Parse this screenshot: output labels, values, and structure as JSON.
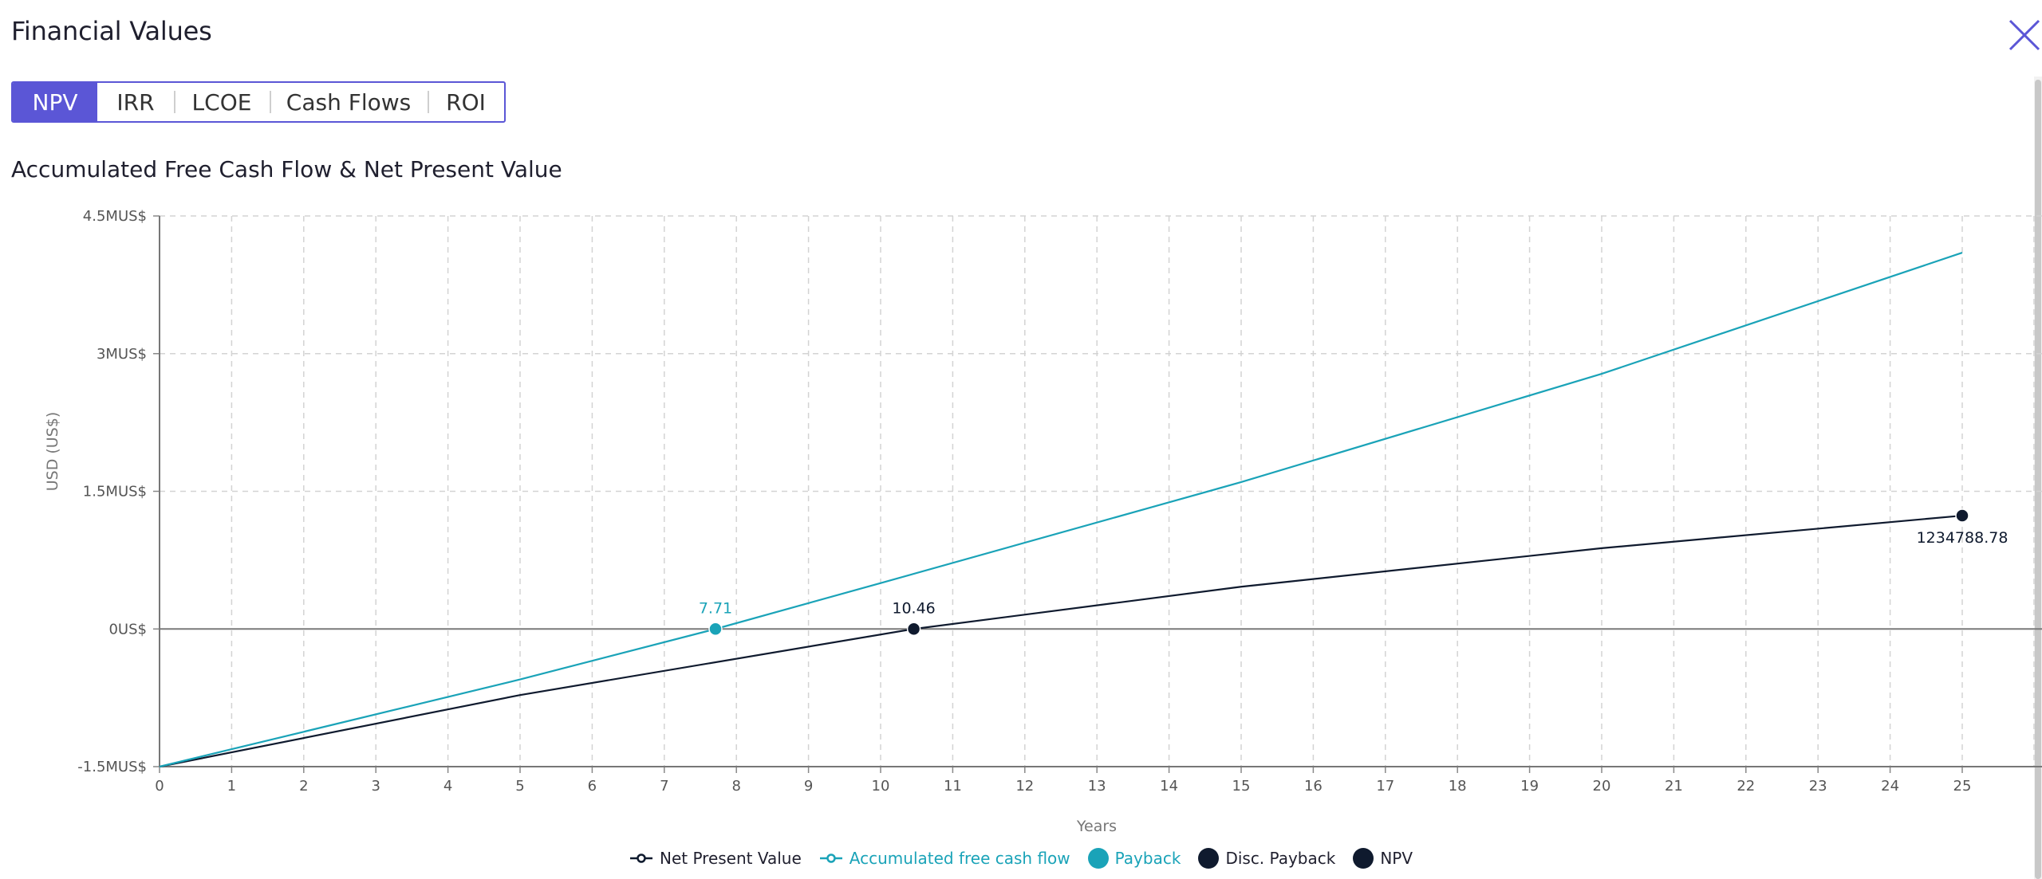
{
  "window": {
    "title": "Financial Values",
    "close_icon": "close-icon"
  },
  "tabs": [
    {
      "label": "NPV",
      "active": true
    },
    {
      "label": "IRR",
      "active": false
    },
    {
      "label": "LCOE",
      "active": false
    },
    {
      "label": "Cash Flows",
      "active": false
    },
    {
      "label": "ROI",
      "active": false
    }
  ],
  "chart_title": "Accumulated Free Cash Flow & Net Present Value",
  "colors": {
    "accent": "#5b56d6",
    "teal": "#1aa3b8",
    "navy": "#0f1a2e",
    "grid": "#d3d3d3",
    "zero_line": "#7a7a7a"
  },
  "chart_data": {
    "type": "line",
    "title": "Accumulated Free Cash Flow & Net Present Value",
    "xlabel": "Years",
    "ylabel": "USD (US$)",
    "xlim": [
      0,
      25
    ],
    "ylim": [
      -1.5,
      4.5
    ],
    "y_unit": "MUS$",
    "x_ticks": [
      0,
      1,
      2,
      3,
      4,
      5,
      6,
      7,
      8,
      9,
      10,
      11,
      12,
      13,
      14,
      15,
      16,
      17,
      18,
      19,
      20,
      21,
      22,
      23,
      24,
      25
    ],
    "y_ticks": [
      {
        "value": -1.5,
        "label": "-1.5MUS$"
      },
      {
        "value": 0,
        "label": "0US$"
      },
      {
        "value": 1.5,
        "label": "1.5MUS$"
      },
      {
        "value": 3,
        "label": "3MUS$"
      },
      {
        "value": 4.5,
        "label": "4.5MUS$"
      }
    ],
    "grid": true,
    "legend_position": "bottom",
    "series": [
      {
        "name": "Net Present Value",
        "color": "#0f1a2e",
        "x": [
          0,
          5,
          10.46,
          15,
          20,
          25
        ],
        "y": [
          -1.5,
          -0.72,
          0,
          0.46,
          0.88,
          1.2348
        ]
      },
      {
        "name": "Accumulated free cash flow",
        "color": "#1aa3b8",
        "x": [
          0,
          5,
          7.71,
          10,
          15,
          20,
          25
        ],
        "y": [
          -1.5,
          -0.55,
          0,
          0.5,
          1.6,
          2.78,
          4.1
        ]
      }
    ],
    "markers": [
      {
        "name": "Payback",
        "x": 7.71,
        "y": 0,
        "label": "7.71",
        "color": "#1aa3b8"
      },
      {
        "name": "Disc. Payback",
        "x": 10.46,
        "y": 0,
        "label": "10.46",
        "color": "#0f1a2e"
      },
      {
        "name": "NPV",
        "x": 25,
        "y": 1.2348,
        "label": "1234788.78",
        "color": "#0f1a2e"
      }
    ],
    "legend": [
      {
        "label": "Net Present Value",
        "kind": "line",
        "color": "#0f1a2e"
      },
      {
        "label": "Accumulated free cash flow",
        "kind": "line",
        "color": "#1aa3b8"
      },
      {
        "label": "Payback",
        "kind": "dot",
        "color": "#1aa3b8"
      },
      {
        "label": "Disc. Payback",
        "kind": "dot",
        "color": "#0f1a2e"
      },
      {
        "label": "NPV",
        "kind": "dot",
        "color": "#0f1a2e"
      }
    ]
  }
}
